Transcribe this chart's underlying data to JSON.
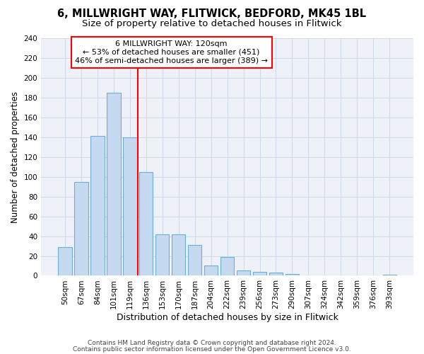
{
  "title1": "6, MILLWRIGHT WAY, FLITWICK, BEDFORD, MK45 1BL",
  "title2": "Size of property relative to detached houses in Flitwick",
  "xlabel": "Distribution of detached houses by size in Flitwick",
  "ylabel": "Number of detached properties",
  "footnote1": "Contains HM Land Registry data © Crown copyright and database right 2024.",
  "footnote2": "Contains public sector information licensed under the Open Government Licence v3.0.",
  "bar_labels": [
    "50sqm",
    "67sqm",
    "84sqm",
    "101sqm",
    "119sqm",
    "136sqm",
    "153sqm",
    "170sqm",
    "187sqm",
    "204sqm",
    "222sqm",
    "239sqm",
    "256sqm",
    "273sqm",
    "290sqm",
    "307sqm",
    "324sqm",
    "342sqm",
    "359sqm",
    "376sqm",
    "393sqm"
  ],
  "bar_values": [
    29,
    95,
    141,
    185,
    140,
    105,
    42,
    42,
    31,
    10,
    19,
    5,
    4,
    3,
    2,
    0,
    0,
    0,
    0,
    0,
    1
  ],
  "bar_color": "#c5d9f0",
  "bar_edge_color": "#6baed6",
  "vline_x": 4.5,
  "vline_color": "red",
  "annotation_text": "6 MILLWRIGHT WAY: 120sqm\n← 53% of detached houses are smaller (451)\n46% of semi-detached houses are larger (389) →",
  "ylim": [
    0,
    240
  ],
  "yticks": [
    0,
    20,
    40,
    60,
    80,
    100,
    120,
    140,
    160,
    180,
    200,
    220,
    240
  ],
  "grid_color": "#d0d8e8",
  "bg_color": "#eef2f8",
  "title1_fontsize": 10.5,
  "title2_fontsize": 9.5,
  "xlabel_fontsize": 9,
  "ylabel_fontsize": 8.5,
  "tick_fontsize": 7.5,
  "footnote_fontsize": 6.5,
  "ann_fontsize": 8.0
}
